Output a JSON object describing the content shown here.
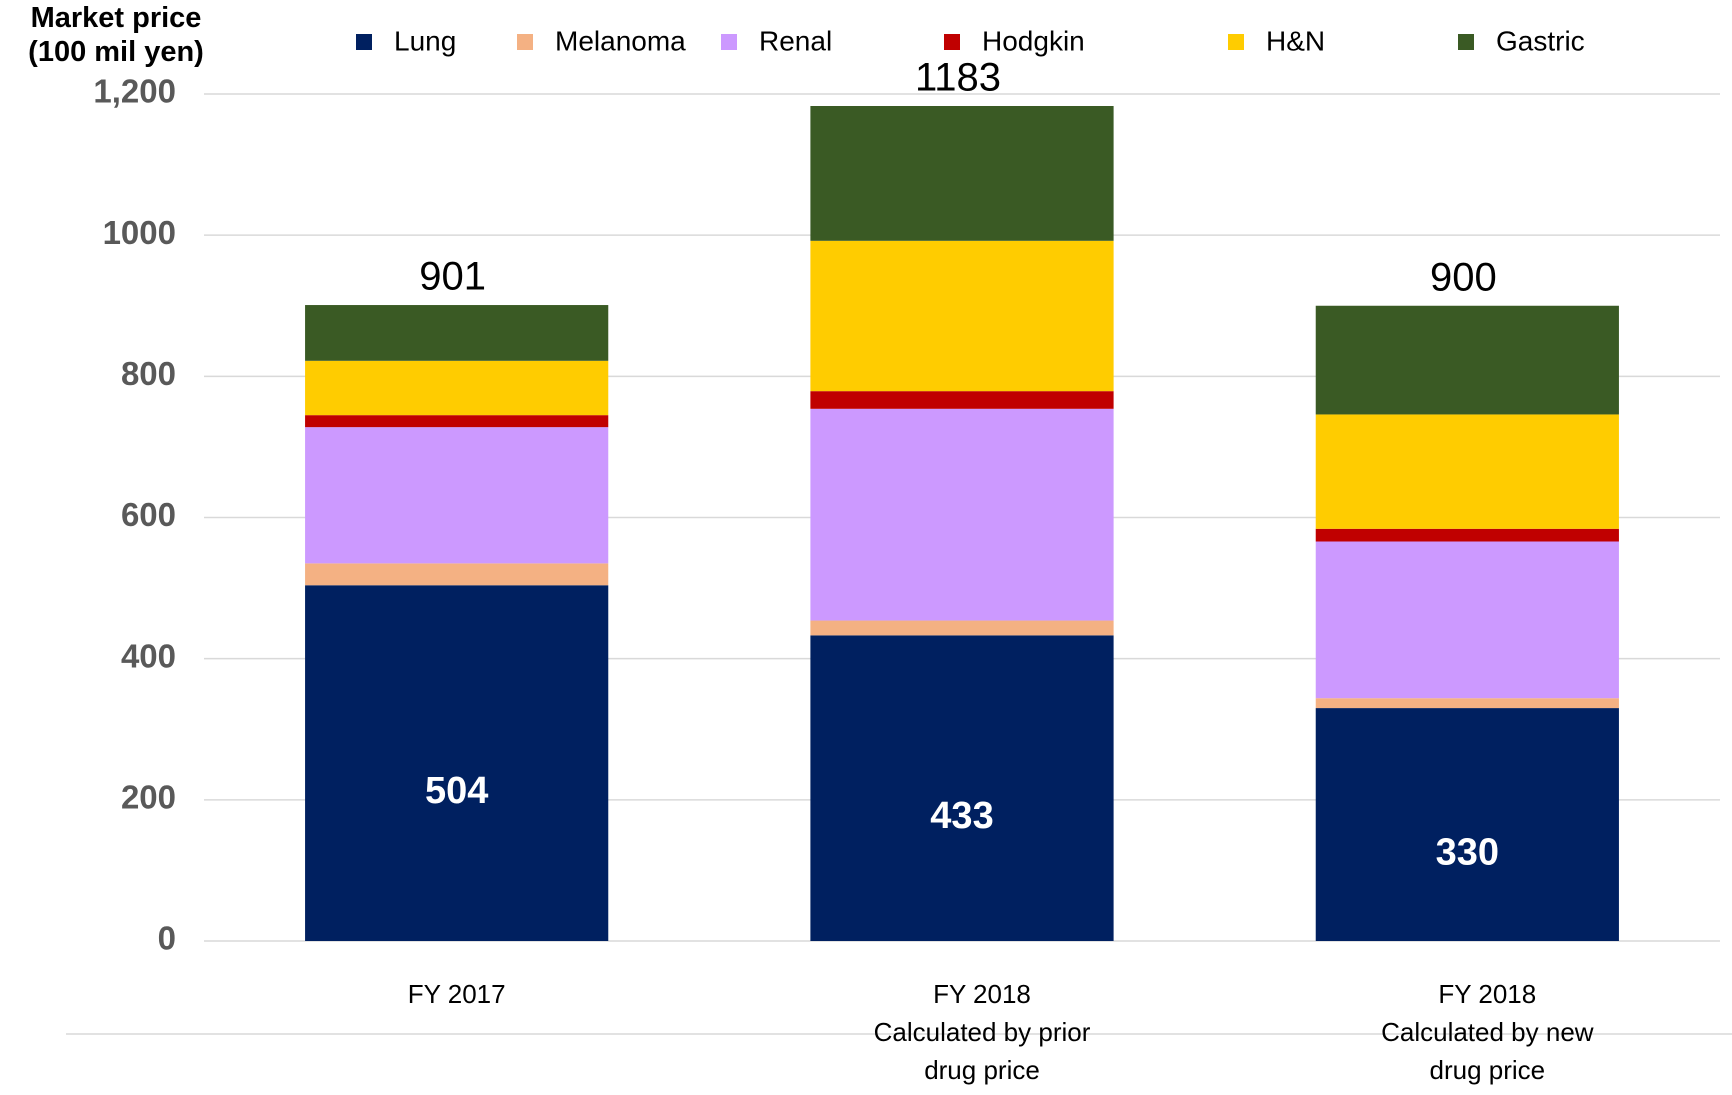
{
  "chart_data": {
    "type": "stacked_bar",
    "y_label": "Market price\n(100 mil yen)",
    "categories": [
      "FY 2017",
      "FY 2018\nCalculated by prior\ndrug price",
      "FY 2018\nCalculated by new\ndrug price"
    ],
    "series": [
      {
        "name": "Lung",
        "color": "#002060",
        "values": [
          504,
          433,
          330
        ],
        "show_labels": true
      },
      {
        "name": "Melanoma",
        "color": "#f4b183",
        "values": [
          31,
          21,
          14
        ]
      },
      {
        "name": "Renal",
        "color": "#cc99ff",
        "values": [
          193,
          300,
          222
        ]
      },
      {
        "name": "Hodgkin",
        "color": "#c00000",
        "values": [
          17,
          25,
          18
        ]
      },
      {
        "name": "H&N",
        "color": "#ffcc00",
        "values": [
          77,
          213,
          162
        ]
      },
      {
        "name": "Gastric",
        "color": "#3a5a24",
        "values": [
          79,
          191,
          154
        ]
      }
    ],
    "total_labels": [
      901,
      1183,
      900
    ],
    "ylim": [
      0,
      1200
    ],
    "yticks": [
      0,
      200,
      400,
      600,
      800,
      1000,
      {
        "value": 1200,
        "label": "1,200"
      }
    ],
    "grid": true
  }
}
